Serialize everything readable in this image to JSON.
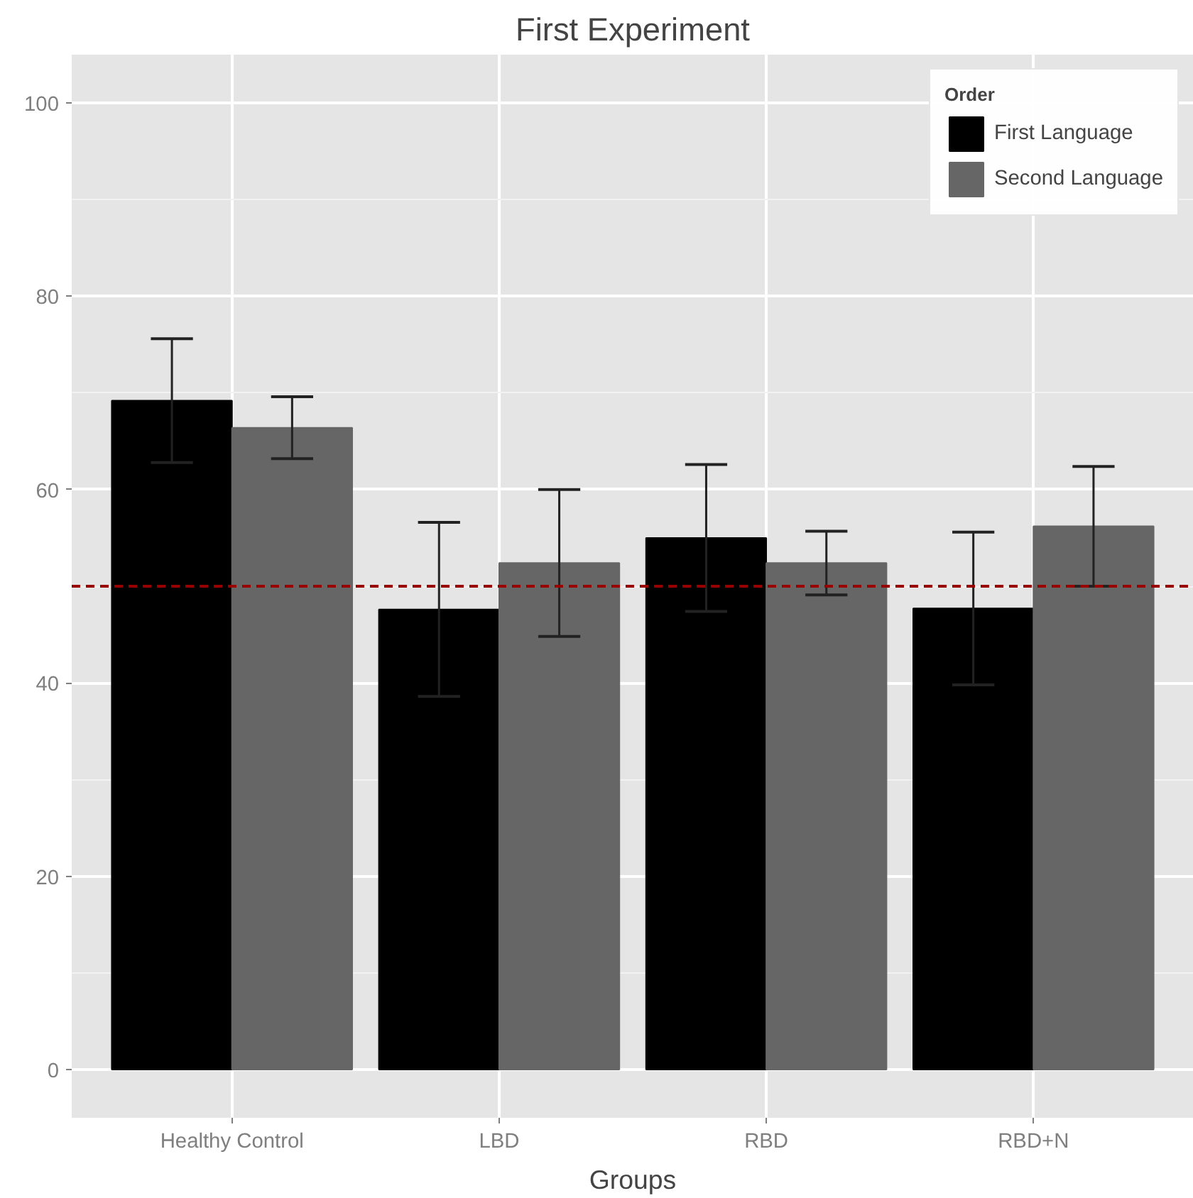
{
  "chart_data": {
    "type": "bar",
    "title": "First Experiment",
    "xlabel": "Groups",
    "categories": [
      "Healthy Control",
      "LBD",
      "RBD",
      "RBD+N"
    ],
    "series": [
      {
        "name": "First Language",
        "color": "#000000",
        "values": [
          69.2,
          47.6,
          55.0,
          47.7
        ],
        "errors": [
          6.4,
          9.0,
          7.6,
          7.9
        ]
      },
      {
        "name": "Second Language",
        "color": "#666666",
        "values": [
          66.4,
          52.4,
          52.4,
          56.2
        ],
        "errors": [
          3.2,
          7.6,
          3.3,
          6.2
        ]
      }
    ],
    "legend_title": "Order",
    "legend": "top right",
    "ylim": [
      -5,
      105
    ],
    "yticks": [
      0,
      20,
      40,
      60,
      80,
      100
    ],
    "grid": true,
    "ref_lines": [
      {
        "axis": "y",
        "value": 50,
        "color": "#990000",
        "line_style": "dashed"
      }
    ]
  }
}
